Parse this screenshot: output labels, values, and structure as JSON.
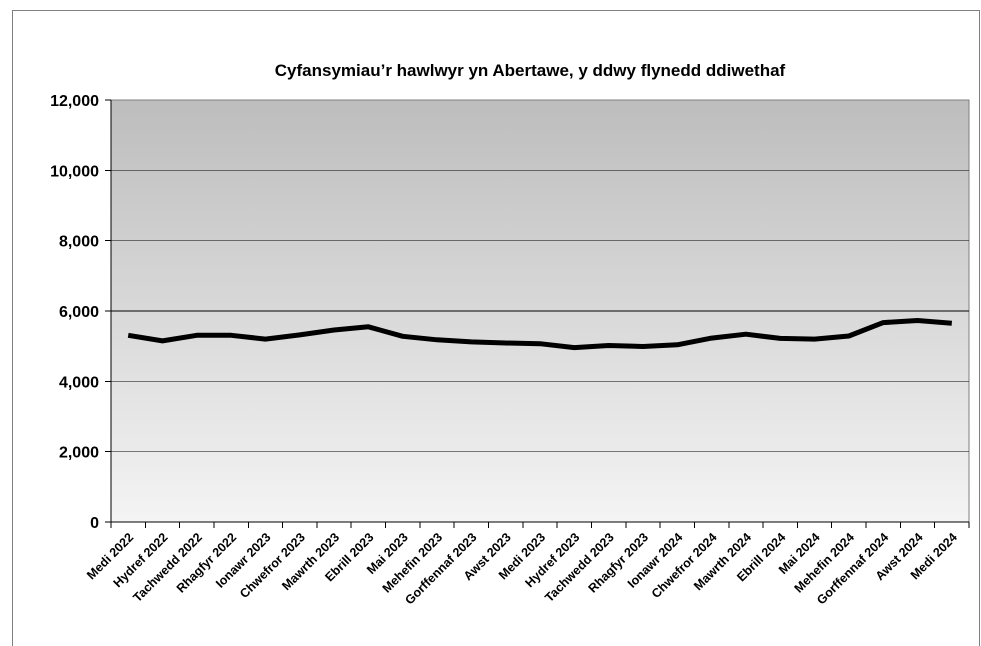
{
  "chart_data": {
    "type": "line",
    "title": "Cyfansymiau’r hawlwyr yn Abertawe, y ddwy flynedd ddiwethaf",
    "xlabel": "",
    "ylabel": "",
    "ylim": [
      0,
      12000
    ],
    "yticks": [
      0,
      2000,
      4000,
      6000,
      8000,
      10000,
      12000
    ],
    "ytick_labels": [
      "0",
      "2,000",
      "4,000",
      "6,000",
      "8,000",
      "10,000",
      "12,000"
    ],
    "grid": true,
    "legend": "none",
    "categories": [
      "Medi 2022",
      "Hydref 2022",
      "Tachwedd 2022",
      "Rhagfyr 2022",
      "Ionawr 2023",
      "Chwefror 2023",
      "Mawrth 2023",
      "Ebrill 2023",
      "Mai 2023",
      "Mehefin 2023",
      "Gorffennaf 2023",
      "Awst 2023",
      "Medi 2023",
      "Hydref 2023",
      "Tachwedd 2023",
      "Rhagfyr 2023",
      "Ionawr 2024",
      "Chwefror 2024",
      "Mawrth 2024",
      "Ebrill 2024",
      "Mai 2024",
      "Mehefin 2024",
      "Gorffennaf 2024",
      "Awst 2024",
      "Medi 2024"
    ],
    "series": [
      {
        "values": [
          5310,
          5150,
          5310,
          5310,
          5200,
          5320,
          5460,
          5550,
          5280,
          5180,
          5120,
          5090,
          5070,
          4960,
          5020,
          4990,
          5040,
          5230,
          5340,
          5220,
          5200,
          5290,
          5670,
          5730,
          5650
        ],
        "color": "#000000"
      }
    ],
    "colors": {
      "plot_bg_top": "#bdbdbd",
      "plot_bg_bottom": "#f4f4f4",
      "line": "#000000",
      "gridline": "#000000"
    }
  }
}
